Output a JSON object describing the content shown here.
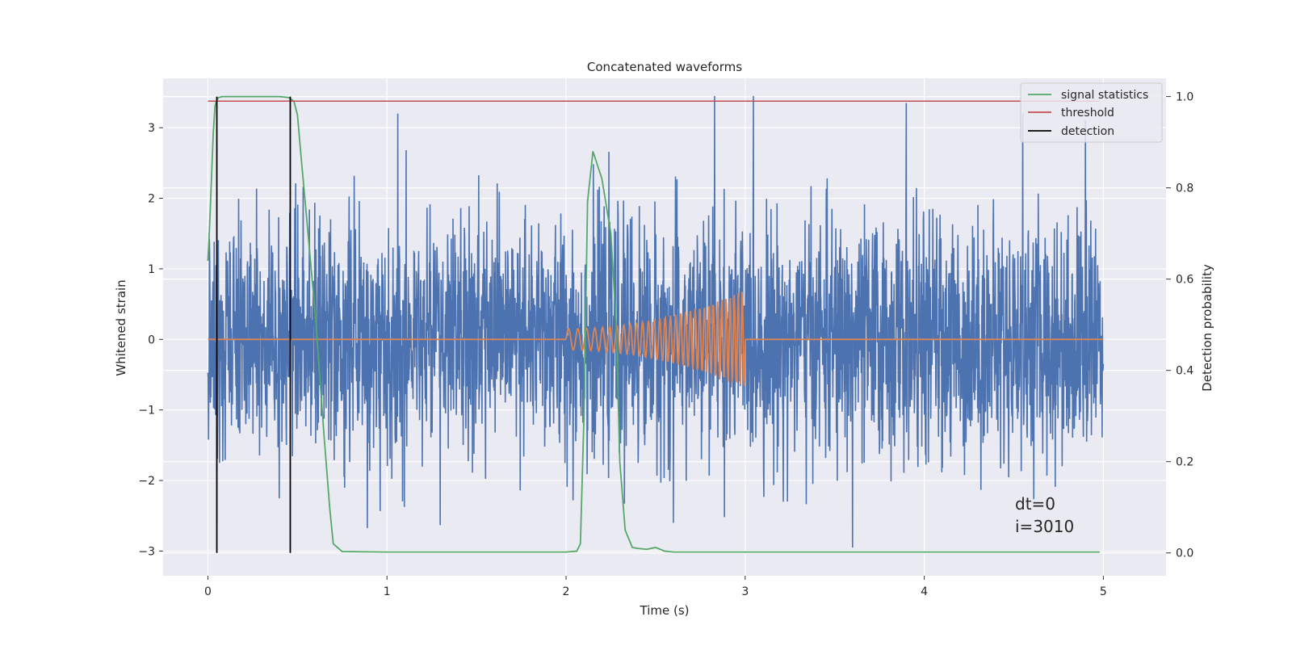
{
  "chart_data": {
    "type": "line",
    "title": "Concatenated waveforms",
    "xlabel": "Time (s)",
    "ylabel": "Whitened strain",
    "y2label": "Detection probability",
    "xlim": [
      -0.25,
      5.35
    ],
    "ylim": [
      -3.35,
      3.7
    ],
    "y2lim": [
      -0.05,
      1.04
    ],
    "xticks": [
      0,
      1,
      2,
      3,
      4,
      5
    ],
    "yticks": [
      -3,
      -2,
      -1,
      0,
      1,
      2,
      3
    ],
    "y2ticks": [
      0.0,
      0.2,
      0.4,
      0.6,
      0.8,
      1.0
    ],
    "xtick_labels": [
      "0",
      "1",
      "2",
      "3",
      "4",
      "5"
    ],
    "ytick_labels": [
      "−3",
      "−2",
      "−1",
      "0",
      "1",
      "2",
      "3"
    ],
    "y2tick_labels": [
      "0.0",
      "0.2",
      "0.4",
      "0.6",
      "0.8",
      "1.0"
    ],
    "grid": true,
    "legend_position": "top-right",
    "colors": {
      "background": "#eaeaf2",
      "grid": "#ffffff",
      "strain": "#4c72b0",
      "injection": "#dd8452",
      "signal_statistics": "#55a868",
      "threshold": "#c44e52",
      "detection": "#000000"
    },
    "series": [
      {
        "name": "",
        "axis": "left",
        "kind": "noise",
        "x_range": [
          0,
          5
        ],
        "typical_peak": 2.0,
        "max_abs": 3.45,
        "tallest_spikes": [
          {
            "x": 0.05,
            "y": -2.6
          },
          {
            "x": 1.06,
            "y": 3.2
          },
          {
            "x": 2.6,
            "y": -2.6
          },
          {
            "x": 2.83,
            "y": 3.45
          },
          {
            "x": 3.6,
            "y": -2.95
          },
          {
            "x": 3.9,
            "y": 3.35
          },
          {
            "x": 4.55,
            "y": 3.2
          },
          {
            "x": 4.9,
            "y": 3.1
          }
        ]
      },
      {
        "name": "",
        "axis": "left",
        "kind": "chirp",
        "x_range": [
          0,
          5
        ],
        "chirp_start": 2.0,
        "chirp_end": 3.0,
        "amplitude_start": 0.15,
        "amplitude_end": 0.7,
        "zero_outside": true
      },
      {
        "name": "signal statistics",
        "axis": "right",
        "x": [
          0.0,
          0.01,
          0.02,
          0.03,
          0.04,
          0.05,
          0.06,
          0.08,
          0.1,
          0.2,
          0.3,
          0.4,
          0.45,
          0.48,
          0.5,
          0.52,
          0.55,
          0.6,
          0.65,
          0.68,
          0.7,
          0.75,
          1.0,
          1.5,
          2.0,
          2.06,
          2.08,
          2.1,
          2.12,
          2.15,
          2.2,
          2.25,
          2.28,
          2.3,
          2.33,
          2.37,
          2.4,
          2.45,
          2.5,
          2.55,
          2.6,
          3.0,
          4.0,
          4.98
        ],
        "y": [
          0.64,
          0.72,
          0.82,
          0.92,
          0.98,
          0.993,
          0.998,
          1.0,
          1.0,
          1.0,
          1.0,
          1.0,
          0.998,
          0.99,
          0.96,
          0.87,
          0.74,
          0.52,
          0.25,
          0.1,
          0.02,
          0.003,
          0.002,
          0.002,
          0.002,
          0.004,
          0.02,
          0.3,
          0.77,
          0.88,
          0.82,
          0.7,
          0.5,
          0.2,
          0.05,
          0.012,
          0.01,
          0.008,
          0.012,
          0.004,
          0.002,
          0.002,
          0.002,
          0.002
        ]
      },
      {
        "name": "threshold",
        "axis": "right",
        "x": [
          0.0,
          4.98
        ],
        "y": [
          0.99,
          0.99
        ]
      },
      {
        "name": "detection",
        "axis": "right",
        "x": [
          0.05,
          0.46
        ],
        "y_range": [
          0.0,
          1.0
        ]
      }
    ],
    "annotations": [
      "dt=0",
      "i=3010"
    ]
  }
}
